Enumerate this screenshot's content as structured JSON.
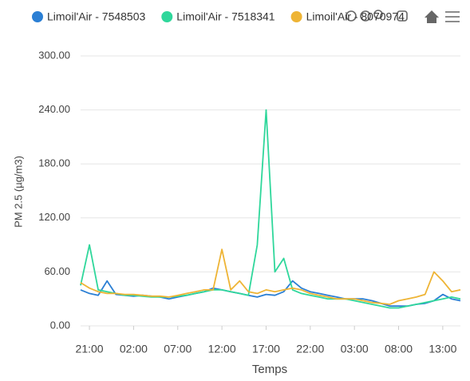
{
  "chart_data": {
    "type": "line",
    "x_label": "Temps",
    "y_label": "PM 2.5 (µg/m3)",
    "categories": [
      null,
      "21:00",
      null,
      null,
      null,
      null,
      "02:00",
      null,
      null,
      null,
      null,
      "07:00",
      null,
      null,
      null,
      null,
      "12:00",
      null,
      null,
      null,
      null,
      "17:00",
      null,
      null,
      null,
      null,
      "22:00",
      null,
      null,
      null,
      null,
      "03:00",
      null,
      null,
      null,
      null,
      "08:00",
      null,
      null,
      null,
      null,
      "13:00",
      null,
      null
    ],
    "series": [
      {
        "name": "Limoil'Air - 7548503",
        "color": "#2b7fd4",
        "values": [
          40,
          36,
          34,
          50,
          35,
          34,
          33,
          34,
          33,
          32,
          30,
          32,
          34,
          36,
          38,
          42,
          40,
          38,
          36,
          34,
          32,
          35,
          34,
          38,
          50,
          42,
          38,
          36,
          34,
          32,
          30,
          30,
          30,
          28,
          25,
          22,
          22,
          22,
          24,
          25,
          28,
          35,
          30,
          28
        ]
      },
      {
        "name": "Limoil'Air - 7518341",
        "color": "#2fd79b",
        "values": [
          45,
          90,
          40,
          38,
          36,
          34,
          34,
          33,
          32,
          32,
          32,
          33,
          34,
          36,
          38,
          40,
          40,
          38,
          36,
          34,
          90,
          240,
          60,
          75,
          40,
          36,
          34,
          32,
          30,
          30,
          30,
          28,
          26,
          24,
          22,
          20,
          20,
          22,
          24,
          26,
          28,
          30,
          32,
          30
        ]
      },
      {
        "name": "Limoil'Air - 8070974",
        "color": "#eeb435",
        "values": [
          48,
          42,
          38,
          36,
          36,
          35,
          35,
          34,
          33,
          33,
          32,
          34,
          36,
          38,
          40,
          40,
          85,
          40,
          50,
          38,
          36,
          40,
          38,
          40,
          42,
          40,
          36,
          34,
          32,
          30,
          30,
          30,
          28,
          26,
          25,
          24,
          28,
          30,
          32,
          35,
          60,
          50,
          38,
          40
        ]
      }
    ],
    "ylim": [
      0,
      300
    ],
    "yticks": [
      {
        "value": 0,
        "label": "0.00"
      },
      {
        "value": 60,
        "label": "60.00"
      },
      {
        "value": 120,
        "label": "120.00"
      },
      {
        "value": 180,
        "label": "180.00"
      },
      {
        "value": 240,
        "label": "240.00"
      },
      {
        "value": 300,
        "label": "300.00"
      }
    ],
    "grid": true,
    "legend": "top"
  }
}
